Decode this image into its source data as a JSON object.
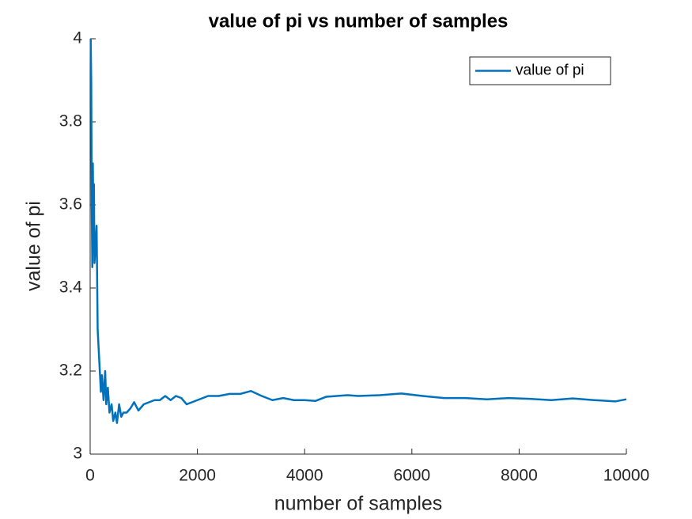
{
  "chart_data": {
    "type": "line",
    "title": "value of pi vs number of samples",
    "x_label": "number of samples",
    "y_label": "value of pi",
    "xlim": [
      0,
      10000
    ],
    "ylim": [
      3,
      4
    ],
    "xticks": [
      0,
      2000,
      4000,
      6000,
      8000,
      10000
    ],
    "yticks": [
      3,
      3.2,
      3.4,
      3.6,
      3.8,
      4
    ],
    "grid": false,
    "legend_position": "northeast",
    "x": [
      10,
      20,
      30,
      40,
      50,
      60,
      70,
      80,
      100,
      120,
      140,
      160,
      180,
      200,
      220,
      250,
      280,
      300,
      330,
      360,
      400,
      430,
      470,
      500,
      540,
      580,
      620,
      680,
      750,
      820,
      900,
      1000,
      1100,
      1200,
      1300,
      1400,
      1500,
      1600,
      1700,
      1800,
      1900,
      2000,
      2200,
      2400,
      2600,
      2800,
      3000,
      3200,
      3400,
      3600,
      3800,
      4000,
      4200,
      4400,
      4600,
      4800,
      5000,
      5400,
      5800,
      6200,
      6600,
      7000,
      7400,
      7800,
      8200,
      8600,
      9000,
      9400,
      9800,
      10000
    ],
    "series": [
      {
        "name": "value of pi",
        "color": "#0072bd",
        "values": [
          4.0,
          3.9,
          3.6,
          3.45,
          3.7,
          3.55,
          3.65,
          3.46,
          3.5,
          3.55,
          3.3,
          3.25,
          3.2,
          3.15,
          3.19,
          3.13,
          3.2,
          3.12,
          3.16,
          3.1,
          3.12,
          3.08,
          3.1,
          3.075,
          3.12,
          3.09,
          3.1,
          3.1,
          3.11,
          3.125,
          3.105,
          3.12,
          3.125,
          3.13,
          3.13,
          3.14,
          3.13,
          3.14,
          3.135,
          3.12,
          3.125,
          3.13,
          3.14,
          3.14,
          3.145,
          3.145,
          3.152,
          3.14,
          3.13,
          3.135,
          3.13,
          3.13,
          3.128,
          3.138,
          3.14,
          3.142,
          3.14,
          3.142,
          3.146,
          3.14,
          3.135,
          3.135,
          3.132,
          3.135,
          3.133,
          3.13,
          3.134,
          3.13,
          3.127,
          3.132
        ]
      }
    ]
  }
}
